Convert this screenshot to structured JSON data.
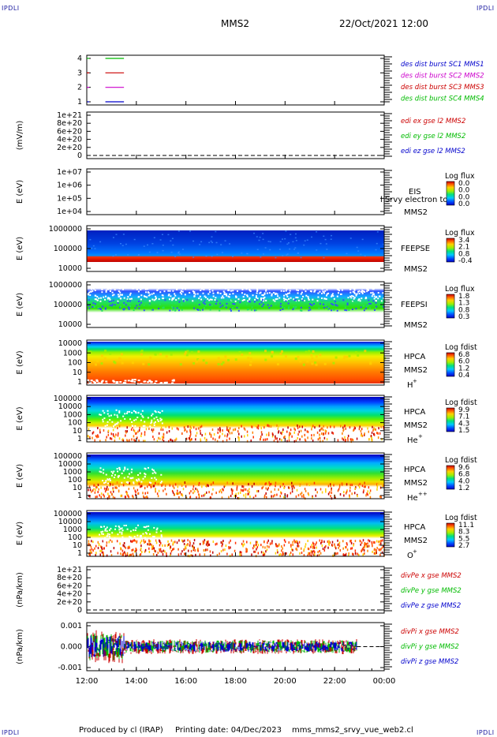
{
  "header": {
    "corner_label": "IPDLI",
    "center_title": "MMS2",
    "datetime": "22/Oct/2021 12:00"
  },
  "footer": {
    "produced_by": "Produced by cl (IRAP)",
    "printing_date": "Printing date: 04/Dec/2023",
    "filename": "mms_mms2_srvy_vue_web2.cl"
  },
  "time_axis": {
    "tick_labels": [
      "12:00",
      "14:00",
      "16:00",
      "18:00",
      "20:00",
      "22:00",
      "00:00"
    ],
    "start_hour": 12,
    "end_hour": 24
  },
  "colors": {
    "mms1": "#0000cc",
    "mms2": "#cc00cc",
    "mms3": "#cc0000",
    "mms4": "#00bb00"
  },
  "panels": [
    {
      "id": "burst",
      "ylabel": "",
      "yticks": [
        "4",
        "3",
        "2",
        "1"
      ],
      "legend": [
        {
          "text": "des dist burst SC1 MMS1",
          "color": "#0000cc"
        },
        {
          "text": "des dist burst SC2 MMS2",
          "color": "#cc00cc"
        },
        {
          "text": "des dist burst SC3 MMS3",
          "color": "#cc0000"
        },
        {
          "text": "des dist burst SC4 MMS4",
          "color": "#00bb00"
        }
      ]
    },
    {
      "id": "edi",
      "ylabel": "(mV/m)",
      "yticks": [
        "1e+21",
        "8e+20",
        "6e+20",
        "4e+20",
        "2e+20",
        "0"
      ],
      "legend": [
        {
          "text": "edi ex gse l2 MMS2",
          "color": "#cc0000"
        },
        {
          "text": "edi ey gse l2 MMS2",
          "color": "#00bb00"
        },
        {
          "text": "edi ez gse l2 MMS2",
          "color": "#0000cc"
        }
      ]
    },
    {
      "id": "eis",
      "ylabel": "E (eV)",
      "yticks": [
        "1e+07",
        "1e+06",
        "1e+05",
        "1e+04"
      ],
      "instrument": "EIS",
      "overlay": "l Srvy electron to",
      "spacecraft": "MMS2",
      "species": "",
      "cbar_title": "Log flux",
      "cbar_ticks": [
        "0.0",
        "0.0",
        "0.0",
        "0.0"
      ]
    },
    {
      "id": "feepse",
      "ylabel": "E (eV)",
      "yticks": [
        "1000000",
        "100000",
        "10000"
      ],
      "instrument": "FEEPSE",
      "spacecraft": "MMS2",
      "species": "",
      "cbar_title": "Log flux",
      "cbar_ticks": [
        "3.4",
        "2.1",
        "0.8",
        "-0.4"
      ]
    },
    {
      "id": "feepsi",
      "ylabel": "E (eV)",
      "yticks": [
        "1000000",
        "100000",
        "10000"
      ],
      "instrument": "FEEPSI",
      "spacecraft": "MMS2",
      "species": "",
      "cbar_title": "Log flux",
      "cbar_ticks": [
        "1.8",
        "1.3",
        "0.8",
        "0.3"
      ]
    },
    {
      "id": "hpca_h",
      "ylabel": "E (eV)",
      "yticks": [
        "10000",
        "1000",
        "100",
        "10",
        "1"
      ],
      "instrument": "HPCA",
      "spacecraft": "MMS2",
      "species": "H",
      "species_sup": "+",
      "cbar_title": "Log fdist",
      "cbar_ticks": [
        "6.8",
        "6.0",
        "1.2",
        "0.4"
      ]
    },
    {
      "id": "hpca_he",
      "ylabel": "E (eV)",
      "yticks": [
        "100000",
        "10000",
        "1000",
        "100",
        "10",
        "1"
      ],
      "instrument": "HPCA",
      "spacecraft": "MMS2",
      "species": "He",
      "species_sup": "+",
      "cbar_title": "Log fdist",
      "cbar_ticks": [
        "9.9",
        "7.1",
        "4.3",
        "1.5"
      ]
    },
    {
      "id": "hpca_hepp",
      "ylabel": "E (eV)",
      "yticks": [
        "100000",
        "10000",
        "1000",
        "100",
        "10",
        "1"
      ],
      "instrument": "HPCA",
      "spacecraft": "MMS2",
      "species": "He",
      "species_sup": "++",
      "cbar_title": "Log fdist",
      "cbar_ticks": [
        "9.6",
        "6.8",
        "4.0",
        "1.2"
      ]
    },
    {
      "id": "hpca_o",
      "ylabel": "E (eV)",
      "yticks": [
        "100000",
        "10000",
        "1000",
        "100",
        "10",
        "1"
      ],
      "instrument": "HPCA",
      "spacecraft": "MMS2",
      "species": "O",
      "species_sup": "+",
      "cbar_title": "Log fdist",
      "cbar_ticks": [
        "11.1",
        "8.3",
        "5.5",
        "2.7"
      ]
    },
    {
      "id": "divpe",
      "ylabel": "(nPa/km)",
      "yticks": [
        "1e+21",
        "8e+20",
        "6e+20",
        "4e+20",
        "2e+20",
        "0"
      ],
      "legend": [
        {
          "text": "divPe x gse MMS2",
          "color": "#cc0000"
        },
        {
          "text": "divPe y gse MMS2",
          "color": "#00bb00"
        },
        {
          "text": "divPe z gse MMS2",
          "color": "#0000cc"
        }
      ]
    },
    {
      "id": "divpi",
      "ylabel": "(nPa/km)",
      "yticks": [
        "0.001",
        "0.000",
        "-0.001"
      ],
      "legend": [
        {
          "text": "divPi x gse MMS2",
          "color": "#cc0000"
        },
        {
          "text": "divPi y gse MMS2",
          "color": "#00bb00"
        },
        {
          "text": "divPi z gse MMS2",
          "color": "#0000cc"
        }
      ]
    }
  ],
  "chart_data": [
    {
      "type": "line",
      "title": "",
      "xlabel": "",
      "ylabel": "",
      "x_range_hours": [
        12,
        24
      ],
      "series": [
        {
          "name": "des dist burst SC1 MMS1",
          "level": 1,
          "intervals_hours": [
            [
              12.0,
              12.1
            ],
            [
              12.75,
              13.5
            ]
          ]
        },
        {
          "name": "des dist burst SC2 MMS2",
          "level": 2,
          "intervals_hours": [
            [
              12.0,
              12.1
            ],
            [
              12.75,
              13.5
            ]
          ]
        },
        {
          "name": "des dist burst SC3 MMS3",
          "level": 3,
          "intervals_hours": [
            [
              12.0,
              12.1
            ],
            [
              12.75,
              13.5
            ]
          ]
        },
        {
          "name": "des dist burst SC4 MMS4",
          "level": 4,
          "intervals_hours": [
            [
              12.0,
              12.1
            ],
            [
              12.75,
              13.5
            ]
          ]
        }
      ],
      "ylim": [
        0.5,
        4.5
      ]
    },
    {
      "type": "line",
      "ylabel": "(mV/m)",
      "ylim": [
        0,
        1e+21
      ],
      "reference_line": 0,
      "series": [
        {
          "name": "edi ex gse l2 MMS2",
          "values": []
        },
        {
          "name": "edi ey gse l2 MMS2",
          "values": []
        },
        {
          "name": "edi ez gse l2 MMS2",
          "values": []
        }
      ]
    },
    {
      "type": "heatmap",
      "name": "FEEPSE",
      "ylabel": "E (eV)",
      "ylim": [
        10000,
        1000000
      ],
      "yscale": "log",
      "cbar_range": [
        -0.4,
        3.4
      ]
    },
    {
      "type": "heatmap",
      "name": "FEEPSI",
      "ylabel": "E (eV)",
      "ylim": [
        10000,
        1000000
      ],
      "yscale": "log",
      "cbar_range": [
        0.3,
        1.8
      ]
    },
    {
      "type": "heatmap",
      "name": "HPCA H+",
      "ylabel": "E (eV)",
      "ylim": [
        1,
        40000
      ],
      "yscale": "log",
      "cbar_range": [
        0.4,
        6.8
      ]
    },
    {
      "type": "heatmap",
      "name": "HPCA He+",
      "ylabel": "E (eV)",
      "ylim": [
        1,
        100000
      ],
      "yscale": "log",
      "cbar_range": [
        1.5,
        9.9
      ]
    },
    {
      "type": "heatmap",
      "name": "HPCA He++",
      "ylabel": "E (eV)",
      "ylim": [
        1,
        100000
      ],
      "yscale": "log",
      "cbar_range": [
        1.2,
        9.6
      ]
    },
    {
      "type": "heatmap",
      "name": "HPCA O+",
      "ylabel": "E (eV)",
      "ylim": [
        1,
        100000
      ],
      "yscale": "log",
      "cbar_range": [
        2.7,
        11.1
      ]
    },
    {
      "type": "line",
      "ylabel": "(nPa/km)",
      "ylim": [
        0,
        1e+21
      ],
      "reference_line": 0,
      "series": [
        {
          "name": "divPe x gse MMS2",
          "values": []
        },
        {
          "name": "divPe y gse MMS2",
          "values": []
        },
        {
          "name": "divPe z gse MMS2",
          "values": []
        }
      ]
    },
    {
      "type": "line",
      "ylabel": "(nPa/km)",
      "ylim": [
        -0.0015,
        0.0015
      ],
      "reference_line": 0,
      "x_data_end_hour": 22.9,
      "series": [
        {
          "name": "divPi x gse MMS2",
          "amplitude_range": [
            -0.0012,
            0.0012
          ]
        },
        {
          "name": "divPi y gse MMS2",
          "amplitude_range": [
            -0.001,
            0.001
          ]
        },
        {
          "name": "divPi z gse MMS2",
          "amplitude_range": [
            -0.0008,
            0.0008
          ]
        }
      ]
    }
  ]
}
